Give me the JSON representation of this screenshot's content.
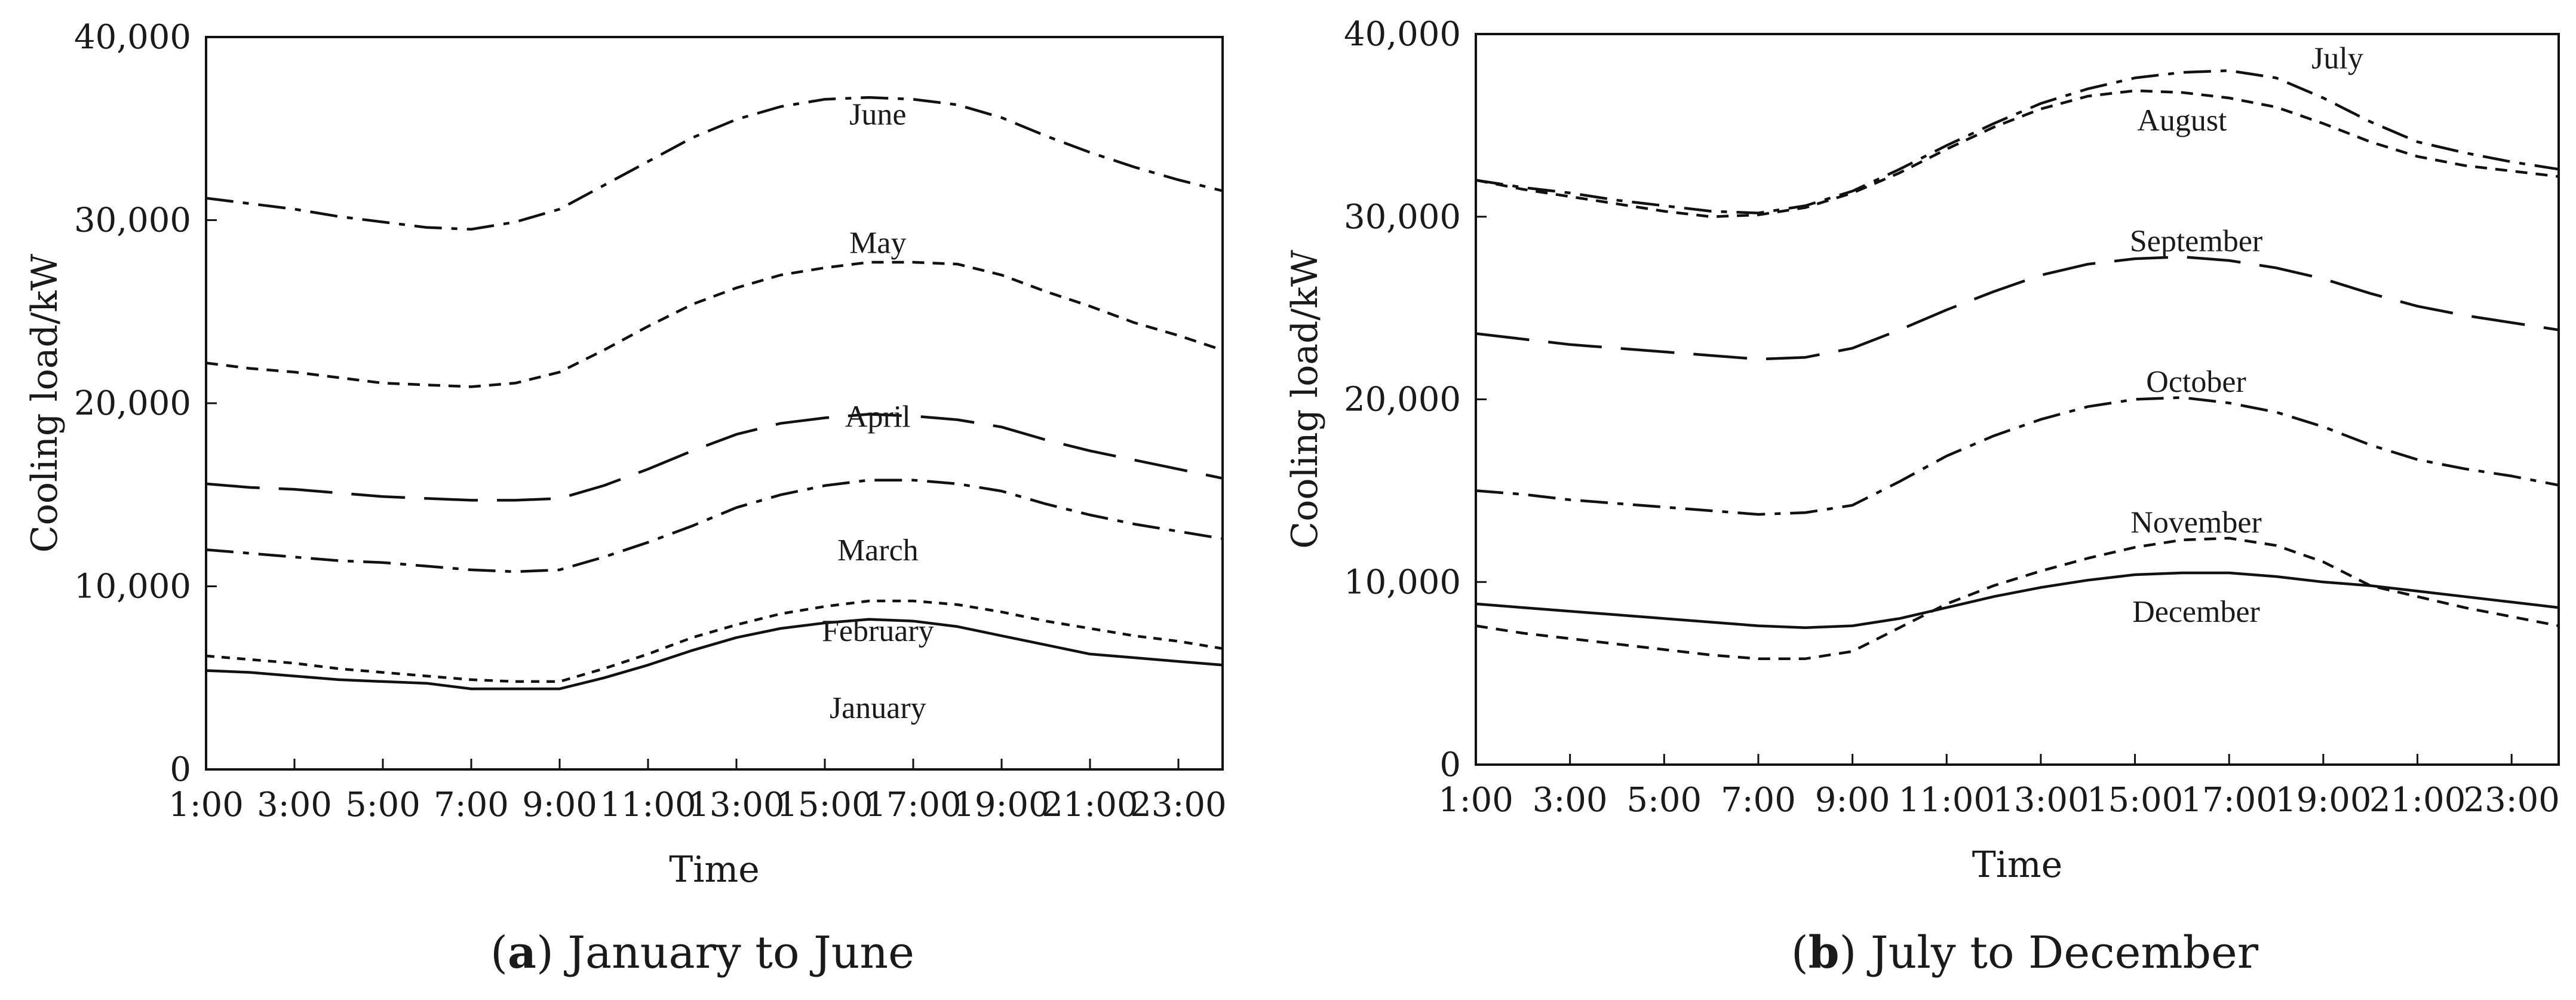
{
  "chart_data": [
    {
      "type": "line",
      "caption_letter": "a",
      "caption_text": ") January to June",
      "xlabel": "Time",
      "ylabel": "Cooling load/kW",
      "x": [
        1,
        2,
        3,
        4,
        5,
        6,
        7,
        8,
        9,
        10,
        11,
        12,
        13,
        14,
        15,
        16,
        17,
        18,
        19,
        20,
        21,
        22,
        23,
        24
      ],
      "xticks": [
        1,
        3,
        5,
        7,
        9,
        11,
        13,
        15,
        17,
        19,
        21,
        23
      ],
      "xtick_labels": [
        "1:00",
        "3:00",
        "5:00",
        "7:00",
        "9:00",
        "11:00",
        "13:00",
        "15:00",
        "17:00",
        "19:00",
        "21:00",
        "23:00"
      ],
      "ylim": [
        0,
        40000
      ],
      "yticks": [
        0,
        10000,
        20000,
        30000,
        40000
      ],
      "ytick_labels": [
        "0",
        "10,000",
        "20,000",
        "30,000",
        "40,000"
      ],
      "series": [
        {
          "name": "January",
          "style": "solid",
          "label_at": [
            16.2,
            3400
          ],
          "values": [
            5400,
            5300,
            5100,
            4900,
            4800,
            4700,
            4400,
            4400,
            4400,
            5000,
            5700,
            6500,
            7200,
            7700,
            8000,
            8200,
            8100,
            7800,
            7300,
            6800,
            6300,
            6100,
            5900,
            5700
          ]
        },
        {
          "name": "February",
          "style": "dotted",
          "label_at": [
            16.2,
            7600
          ],
          "values": [
            6200,
            6000,
            5800,
            5500,
            5300,
            5100,
            4900,
            4800,
            4800,
            5500,
            6300,
            7200,
            7900,
            8500,
            8900,
            9200,
            9200,
            9000,
            8600,
            8100,
            7700,
            7300,
            7000,
            6600
          ]
        },
        {
          "name": "March",
          "style": "dashdot",
          "label_at": [
            16.2,
            12000
          ],
          "values": [
            12000,
            11800,
            11600,
            11400,
            11300,
            11100,
            10900,
            10800,
            10900,
            11600,
            12400,
            13300,
            14300,
            15000,
            15500,
            15800,
            15800,
            15600,
            15200,
            14500,
            13900,
            13400,
            13000,
            12600
          ]
        },
        {
          "name": "April",
          "style": "longdash",
          "label_at": [
            16.2,
            19300
          ],
          "values": [
            15600,
            15400,
            15300,
            15100,
            14900,
            14800,
            14700,
            14700,
            14800,
            15500,
            16400,
            17400,
            18300,
            18900,
            19200,
            19400,
            19300,
            19100,
            18700,
            18000,
            17400,
            16900,
            16400,
            15900
          ]
        },
        {
          "name": "May",
          "style": "dashed",
          "label_at": [
            16.2,
            28800
          ],
          "values": [
            22200,
            21900,
            21700,
            21400,
            21100,
            21000,
            20900,
            21100,
            21700,
            22900,
            24200,
            25400,
            26300,
            27000,
            27400,
            27700,
            27700,
            27600,
            27000,
            26100,
            25300,
            24400,
            23700,
            22900
          ]
        },
        {
          "name": "June",
          "style": "dashdot",
          "label_at": [
            16.2,
            35800
          ],
          "values": [
            31200,
            30900,
            30600,
            30200,
            29900,
            29600,
            29500,
            29900,
            30600,
            31900,
            33200,
            34500,
            35500,
            36200,
            36600,
            36700,
            36600,
            36300,
            35600,
            34600,
            33700,
            32900,
            32200,
            31600
          ]
        }
      ]
    },
    {
      "type": "line",
      "caption_letter": "b",
      "caption_text": ") July to December",
      "xlabel": "Time",
      "ylabel": "Cooling load/kW",
      "x": [
        1,
        2,
        3,
        4,
        5,
        6,
        7,
        8,
        9,
        10,
        11,
        12,
        13,
        14,
        15,
        16,
        17,
        18,
        19,
        20,
        21,
        22,
        23,
        24
      ],
      "xticks": [
        1,
        3,
        5,
        7,
        9,
        11,
        13,
        15,
        17,
        19,
        21,
        23
      ],
      "xtick_labels": [
        "1:00",
        "3:00",
        "5:00",
        "7:00",
        "9:00",
        "11:00",
        "13:00",
        "15:00",
        "17:00",
        "19:00",
        "21:00",
        "23:00"
      ],
      "ylim": [
        0,
        40000
      ],
      "yticks": [
        0,
        10000,
        20000,
        30000,
        40000
      ],
      "ytick_labels": [
        "0",
        "10,000",
        "20,000",
        "30,000",
        "40,000"
      ],
      "series": [
        {
          "name": "July",
          "style": "dashdot",
          "label_at": [
            19.3,
            38700
          ],
          "values": [
            32000,
            31600,
            31300,
            30900,
            30600,
            30300,
            30200,
            30600,
            31400,
            32600,
            33900,
            35100,
            36200,
            37000,
            37600,
            37900,
            38000,
            37600,
            36500,
            35200,
            34100,
            33500,
            33000,
            32600
          ]
        },
        {
          "name": "August",
          "style": "dashed",
          "label_at": [
            16.0,
            35300
          ],
          "values": [
            32000,
            31500,
            31100,
            30700,
            30300,
            30000,
            30100,
            30500,
            31300,
            32400,
            33700,
            34900,
            35900,
            36600,
            36900,
            36800,
            36500,
            36000,
            35100,
            34100,
            33300,
            32800,
            32500,
            32200
          ]
        },
        {
          "name": "September",
          "style": "longdash",
          "label_at": [
            16.3,
            28700
          ],
          "values": [
            23600,
            23300,
            23000,
            22800,
            22600,
            22400,
            22200,
            22300,
            22800,
            23800,
            24900,
            25900,
            26800,
            27400,
            27700,
            27800,
            27600,
            27200,
            26600,
            25800,
            25100,
            24600,
            24200,
            23800
          ]
        },
        {
          "name": "October",
          "style": "dashdot",
          "label_at": [
            16.3,
            21000
          ],
          "values": [
            15000,
            14800,
            14500,
            14300,
            14100,
            13900,
            13700,
            13800,
            14200,
            15500,
            16900,
            18000,
            18900,
            19600,
            20000,
            20100,
            19800,
            19300,
            18500,
            17500,
            16700,
            16200,
            15800,
            15300
          ]
        },
        {
          "name": "November",
          "style": "dashed",
          "label_at": [
            16.3,
            13300
          ],
          "values": [
            7600,
            7200,
            6900,
            6600,
            6300,
            6000,
            5800,
            5800,
            6200,
            7500,
            8800,
            9800,
            10600,
            11300,
            11900,
            12300,
            12400,
            12000,
            11100,
            9800,
            9200,
            8600,
            8100,
            7600
          ]
        },
        {
          "name": "December",
          "style": "solid",
          "label_at": [
            16.3,
            8400
          ],
          "values": [
            8800,
            8600,
            8400,
            8200,
            8000,
            7800,
            7600,
            7500,
            7600,
            8000,
            8600,
            9200,
            9700,
            10100,
            10400,
            10500,
            10500,
            10300,
            10000,
            9800,
            9500,
            9200,
            8900,
            8600
          ]
        }
      ]
    }
  ]
}
